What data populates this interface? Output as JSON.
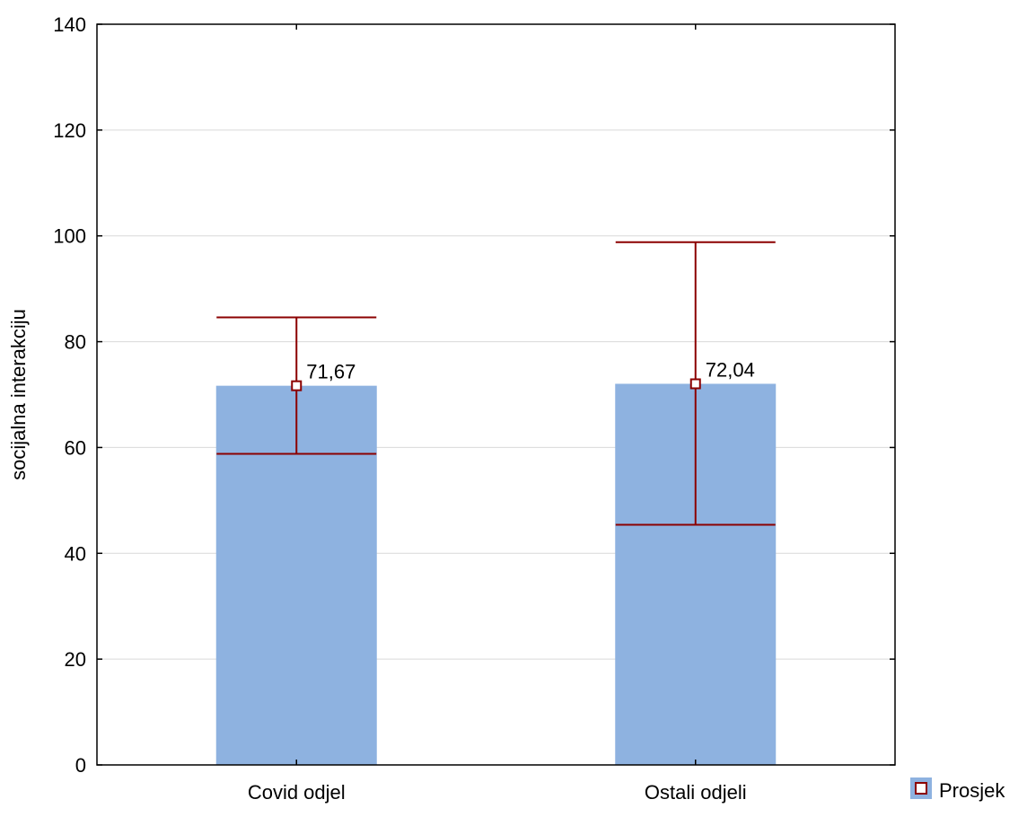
{
  "chart_data": {
    "type": "bar",
    "title": "",
    "xlabel": "",
    "ylabel": "socijalna interakciju",
    "ylim": [
      0,
      140
    ],
    "yticks": [
      0,
      20,
      40,
      60,
      80,
      100,
      120,
      140
    ],
    "grid": true,
    "categories": [
      "Covid odjel",
      "Ostali odjeli"
    ],
    "values": [
      71.67,
      72.04
    ],
    "value_labels": [
      "71,67",
      "72,04"
    ],
    "error_low": [
      58.8,
      45.4
    ],
    "error_high": [
      84.6,
      98.8
    ],
    "legend": {
      "placement": "bottom-right",
      "entries": [
        {
          "label": "Prosjek",
          "swatch": "bar-with-square-marker"
        }
      ]
    },
    "colors": {
      "bar": "#8EB2E0",
      "error": "#8B0000",
      "marker": "#8B0000",
      "grid": "#D9D9D9",
      "axis": "#000000"
    }
  }
}
